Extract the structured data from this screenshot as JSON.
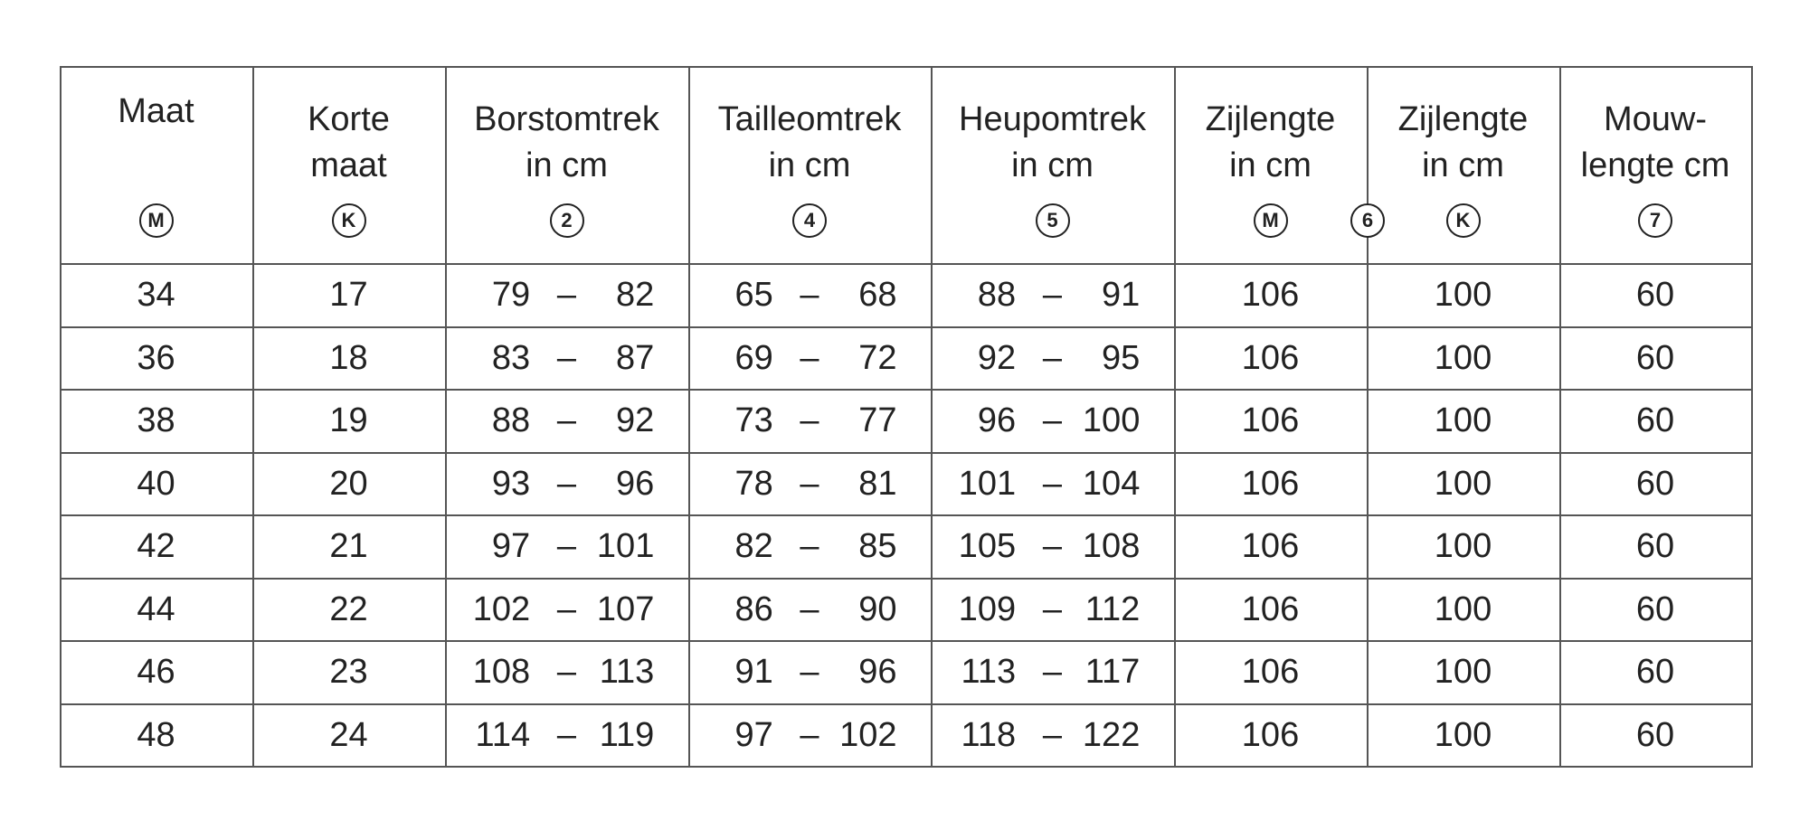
{
  "table": {
    "headers": [
      {
        "lines": [
          "Maat"
        ],
        "marker": "M"
      },
      {
        "lines": [
          "Korte",
          "maat"
        ],
        "marker": "K"
      },
      {
        "lines": [
          "Borstomtrek",
          "in cm"
        ],
        "marker": "2"
      },
      {
        "lines": [
          "Tailleomtrek",
          "in cm"
        ],
        "marker": "4"
      },
      {
        "lines": [
          "Heupomtrek",
          "in cm"
        ],
        "marker": "5"
      },
      {
        "lines": [
          "Zijlengte",
          "in cm"
        ],
        "marker": "M"
      },
      {
        "lines": [
          "Zijlengte",
          "in cm"
        ],
        "marker": "K"
      },
      {
        "lines": [
          "Mouw-",
          "lengte cm"
        ],
        "marker": "7"
      }
    ],
    "shared_marker": "6",
    "rows": [
      [
        "34",
        "17",
        [
          "79",
          "–",
          "82"
        ],
        [
          "65",
          "–",
          "68"
        ],
        [
          "88",
          "–",
          "91"
        ],
        "106",
        "100",
        "60"
      ],
      [
        "36",
        "18",
        [
          "83",
          "–",
          "87"
        ],
        [
          "69",
          "–",
          "72"
        ],
        [
          "92",
          "–",
          "95"
        ],
        "106",
        "100",
        "60"
      ],
      [
        "38",
        "19",
        [
          "88",
          "–",
          "92"
        ],
        [
          "73",
          "–",
          "77"
        ],
        [
          "96",
          "–",
          "100"
        ],
        "106",
        "100",
        "60"
      ],
      [
        "40",
        "20",
        [
          "93",
          "–",
          "96"
        ],
        [
          "78",
          "–",
          "81"
        ],
        [
          "101",
          "–",
          "104"
        ],
        "106",
        "100",
        "60"
      ],
      [
        "42",
        "21",
        [
          "97",
          "–",
          "101"
        ],
        [
          "82",
          "–",
          "85"
        ],
        [
          "105",
          "–",
          "108"
        ],
        "106",
        "100",
        "60"
      ],
      [
        "44",
        "22",
        [
          "102",
          "–",
          "107"
        ],
        [
          "86",
          "–",
          "90"
        ],
        [
          "109",
          "–",
          "112"
        ],
        "106",
        "100",
        "60"
      ],
      [
        "46",
        "23",
        [
          "108",
          "–",
          "113"
        ],
        [
          "91",
          "–",
          "96"
        ],
        [
          "113",
          "–",
          "117"
        ],
        "106",
        "100",
        "60"
      ],
      [
        "48",
        "24",
        [
          "114",
          "–",
          "119"
        ],
        [
          "97",
          "–",
          "102"
        ],
        [
          "118",
          "–",
          "122"
        ],
        "106",
        "100",
        "60"
      ]
    ]
  }
}
